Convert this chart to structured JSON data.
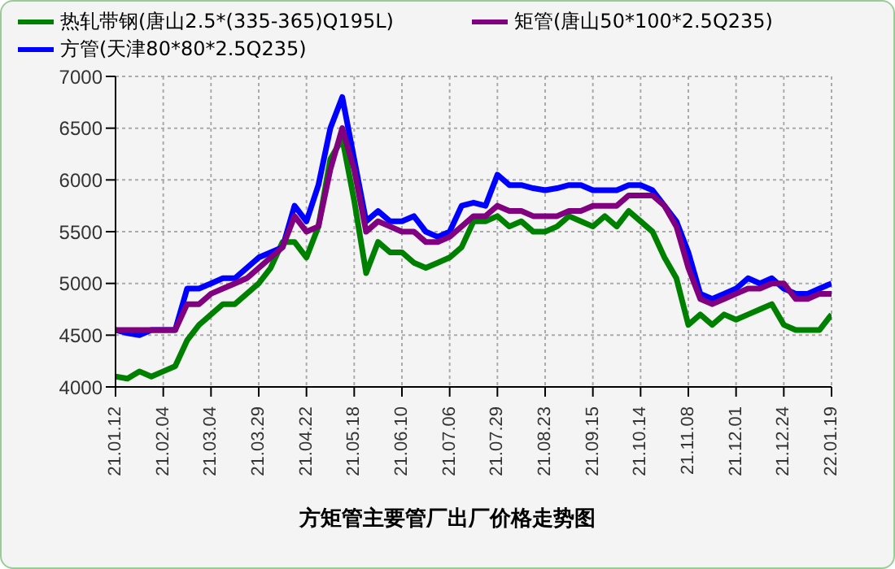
{
  "chart_data": {
    "type": "line",
    "title": "方矩管主要管厂出厂价格走势图",
    "categories": [
      "21.01.12",
      null,
      null,
      null,
      "21.02.04",
      null,
      null,
      null,
      "21.03.04",
      null,
      null,
      null,
      "21.03.29",
      null,
      null,
      null,
      "21.04.22",
      null,
      null,
      null,
      "21.05.18",
      null,
      null,
      null,
      "21.06.10",
      null,
      null,
      null,
      "21.07.06",
      null,
      null,
      null,
      "21.07.29",
      null,
      null,
      null,
      "21.08.23",
      null,
      null,
      null,
      "21.09.15",
      null,
      null,
      null,
      "21.10.14",
      null,
      null,
      null,
      "21.11.08",
      null,
      null,
      null,
      "21.12.01",
      null,
      null,
      null,
      "21.12.24",
      null,
      null,
      null,
      "22.01.19"
    ],
    "series": [
      {
        "name": "热轧带钢(唐山2.5*(335-365)Q195L)",
        "color": "#008000",
        "values": [
          4100,
          4080,
          4150,
          4100,
          4150,
          4200,
          4450,
          4600,
          4700,
          4800,
          4800,
          4900,
          5000,
          5150,
          5400,
          5400,
          5250,
          5550,
          6200,
          6400,
          5800,
          5100,
          5400,
          5300,
          5300,
          5200,
          5150,
          5200,
          5250,
          5350,
          5600,
          5600,
          5650,
          5550,
          5600,
          5500,
          5500,
          5550,
          5650,
          5600,
          5550,
          5650,
          5550,
          5700,
          5600,
          5500,
          5250,
          5050,
          4600,
          4700,
          4600,
          4700,
          4650,
          4700,
          4750,
          4800,
          4600,
          4550,
          4550,
          4550,
          4700
        ]
      },
      {
        "name": "方管(天津80*80*2.5Q235)",
        "color": "#0000ff",
        "values": [
          4550,
          4520,
          4500,
          4550,
          4550,
          4550,
          4950,
          4950,
          5000,
          5050,
          5050,
          5150,
          5250,
          5300,
          5350,
          5750,
          5600,
          5950,
          6500,
          6800,
          6200,
          5600,
          5700,
          5600,
          5600,
          5650,
          5500,
          5450,
          5500,
          5750,
          5780,
          5750,
          6050,
          5950,
          5950,
          5920,
          5900,
          5920,
          5950,
          5950,
          5900,
          5900,
          5900,
          5950,
          5950,
          5900,
          5750,
          5600,
          5300,
          4900,
          4850,
          4900,
          4950,
          5050,
          5000,
          5050,
          4950,
          4900,
          4900,
          4950,
          5000
        ]
      },
      {
        "name": "矩管(唐山50*100*2.5Q235)",
        "color": "#800080",
        "values": [
          4550,
          4550,
          4550,
          4550,
          4550,
          4550,
          4800,
          4800,
          4900,
          4950,
          5000,
          5050,
          5150,
          5250,
          5350,
          5650,
          5500,
          5550,
          6100,
          6500,
          6100,
          5500,
          5600,
          5550,
          5500,
          5500,
          5400,
          5400,
          5450,
          5550,
          5650,
          5650,
          5750,
          5700,
          5700,
          5650,
          5650,
          5650,
          5700,
          5700,
          5750,
          5750,
          5750,
          5850,
          5850,
          5850,
          5750,
          5550,
          5150,
          4850,
          4800,
          4850,
          4900,
          4950,
          4950,
          5000,
          5000,
          4850,
          4850,
          4900,
          4900
        ]
      }
    ],
    "ylim": [
      4000,
      7000
    ],
    "yticks": [
      4000,
      4500,
      5000,
      5500,
      6000,
      6500,
      7000
    ],
    "grid": true,
    "legend": "top",
    "marker": "none",
    "line_style": "solid"
  }
}
